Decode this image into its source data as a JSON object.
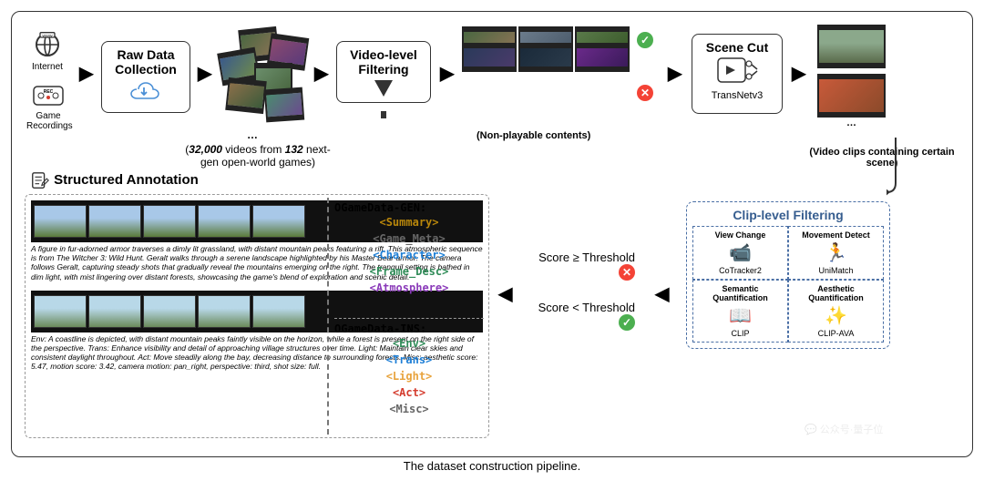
{
  "caption": "The dataset construction pipeline.",
  "sources": {
    "internet": "Internet",
    "recordings": "Game Recordings"
  },
  "stage1": {
    "title": "Raw Data Collection",
    "count": "32,000",
    "games": "132",
    "subcap": " videos from ",
    "subcap2": " next-gen open-world games)"
  },
  "stage2": {
    "title": "Video-level Filtering",
    "reject_note": "(Non-playable contents)"
  },
  "stage3": {
    "title": "Scene Cut",
    "tool": "TransNetv3",
    "note": "(Video clips containing certain scene)"
  },
  "stage4": {
    "title": "Clip-level Filtering",
    "cells": [
      {
        "h": "View Change",
        "t": "CoTracker2"
      },
      {
        "h": "Movement Detect",
        "t": "UniMatch"
      },
      {
        "h": "Semantic Quantification",
        "t": "CLIP"
      },
      {
        "h": "Aesthetic Quantification",
        "t": "CLIP-AVA"
      }
    ]
  },
  "thresh": {
    "ge": "Score ≥ Threshold",
    "lt": "Score < Threshold"
  },
  "anno": {
    "title": "Structured Annotation",
    "gen_title": "OGameData-GEN:",
    "gen_tags": [
      {
        "t": "<Summary>",
        "c": "#b8860b"
      },
      {
        "t": "<Game_Meta>",
        "c": "#666666"
      },
      {
        "t": "<Character>",
        "c": "#1e7fd6"
      },
      {
        "t": "<Frame_Desc>",
        "c": "#2e8b57"
      },
      {
        "t": "<Atmosphere>",
        "c": "#8a3ab9"
      }
    ],
    "ins_title": "OGameData-INS:",
    "ins_tags": [
      {
        "t": "<Env>",
        "c": "#2e8b57"
      },
      {
        "t": "<Trans>",
        "c": "#1e7fd6"
      },
      {
        "t": "<Light>",
        "c": "#e8a33d"
      },
      {
        "t": "<Act>",
        "c": "#d43c2e"
      },
      {
        "t": "<Misc>",
        "c": "#666666"
      }
    ],
    "gen_desc": "A figure in fur-adorned armor traverses a dimly lit grassland, with distant mountain peaks featuring a rift. This atmospheric sequence is from The Witcher 3: Wild Hunt. Geralt walks through a serene landscape highlighted by his Master Bear armor. The camera follows Geralt, capturing steady shots that gradually reveal the mountains emerging on the right. The tranquil setting is bathed in dim light, with mist lingering over distant forests, showcasing the game's blend of exploration and scenic detail.",
    "ins_desc": "Env: A coastline is depicted, with distant mountain peaks faintly visible on the horizon, while a forest is present on the right side of the perspective. Trans: Enhance visibility and detail of approaching village structures over time. Light: Maintain clear skies and consistent daylight throughout. Act: Move steadily along the bay, decreasing distance to surrounding forests. Misc: aesthetic score: 5.47, motion score: 3.42, camera motion: pan_right, perspective: third, shot size: full."
  },
  "colors": {
    "border": "#333333",
    "dash": "#4a6fa5",
    "bg": "#ffffff"
  }
}
